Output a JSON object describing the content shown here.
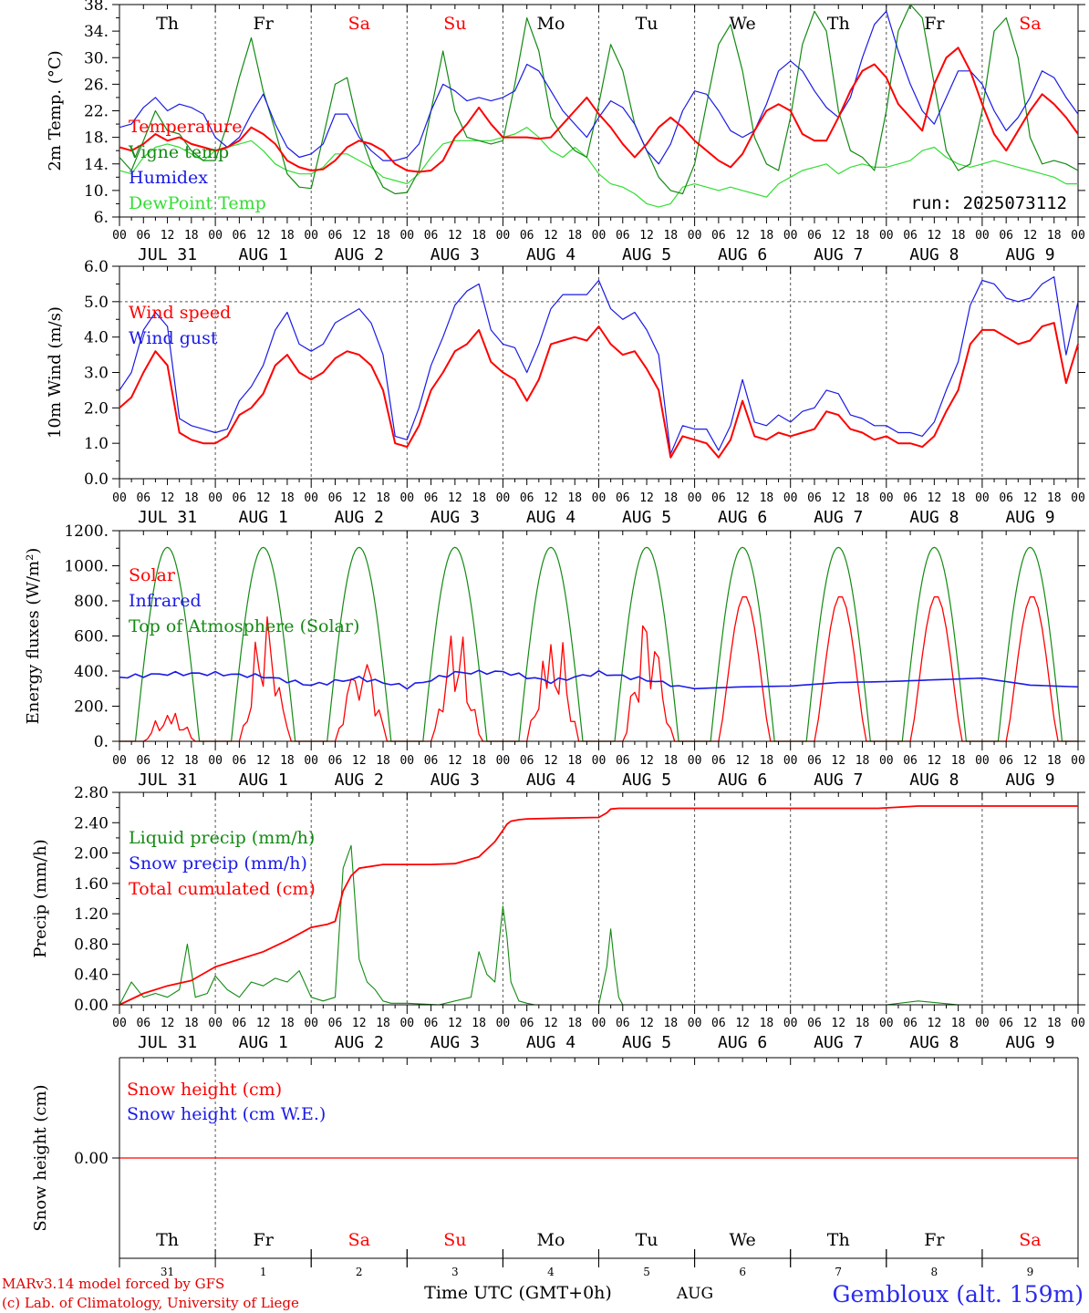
{
  "colors": {
    "red": "#ff0000",
    "green": "#138a13",
    "blue": "#1a1ae6",
    "lightgreen": "#33dd33",
    "axis": "#000000",
    "grid": "#555555",
    "credit": "#e00000",
    "station": "#2a2aee"
  },
  "days": {
    "names": [
      "Th",
      "Fr",
      "Sa",
      "Su",
      "Mo",
      "Tu",
      "We",
      "Th",
      "Fr",
      "Sa"
    ],
    "weekend_colored": [
      false,
      false,
      true,
      true,
      false,
      false,
      false,
      false,
      false,
      true
    ],
    "date_labels": [
      "JUL 31",
      "AUG  1",
      "AUG  2",
      "AUG  3",
      "AUG  4",
      "AUG  5",
      "AUG  6",
      "AUG  7",
      "AUG  8",
      "AUG  9"
    ],
    "hour_ticks": [
      "00",
      "06",
      "12",
      "18"
    ],
    "final_hour": "00",
    "day_numbers": [
      "31",
      "1",
      "2",
      "3",
      "4",
      "5",
      "6",
      "7",
      "8",
      "9"
    ],
    "month": "AUG"
  },
  "run_label": "run: 2025073112",
  "footer": {
    "credit_line1": "MARv3.14 model forced by GFS",
    "credit_line2": "(c) Lab. of Climatology, University of Liege",
    "axis_title": "Time UTC (GMT+0h)",
    "station": "Gembloux (alt. 159m)"
  },
  "chart_data": [
    {
      "type": "line",
      "ylabel": "2m Temp. (°C)",
      "ylim": [
        6,
        38
      ],
      "yticks": [
        "38.",
        "34.",
        "30.",
        "26.",
        "22.",
        "18.",
        "14.",
        "10.",
        "6."
      ],
      "ytick_values": [
        38,
        34,
        30,
        26,
        22,
        18,
        14,
        10,
        6
      ],
      "x_hours": [
        0,
        3,
        6,
        9,
        12,
        15,
        18,
        21,
        24,
        27,
        30,
        33,
        36,
        39,
        42,
        45,
        48,
        51,
        54,
        57,
        60,
        63,
        66,
        69,
        72,
        75,
        78,
        81,
        84,
        87,
        90,
        93,
        96,
        99,
        102,
        105,
        108,
        111,
        114,
        117,
        120,
        123,
        126,
        129,
        132,
        135,
        138,
        141,
        144,
        147,
        150,
        153,
        156,
        159,
        162,
        165,
        168,
        171,
        174,
        177,
        180,
        183,
        186,
        189,
        192,
        195,
        198,
        201,
        204,
        207,
        210,
        213,
        216,
        219,
        222,
        225,
        228,
        231,
        234,
        237,
        240
      ],
      "series": [
        {
          "name": "Temperature",
          "color": "red",
          "values": [
            16.5,
            16,
            17,
            18.5,
            17.5,
            18,
            17,
            16.5,
            16,
            16.5,
            17.5,
            19.5,
            18.5,
            17,
            14.5,
            13.5,
            13,
            13.2,
            14.5,
            16.5,
            17.5,
            17,
            16,
            14,
            13,
            12.8,
            13,
            14.5,
            18,
            20,
            22.5,
            20,
            18,
            18,
            18,
            17.8,
            18,
            20,
            22,
            24,
            21.5,
            19.5,
            17,
            15,
            17,
            19.5,
            21,
            19.5,
            17.5,
            16,
            14.5,
            13.5,
            15.5,
            19,
            22,
            23,
            22,
            18.5,
            17.5,
            17.5,
            21,
            25,
            28,
            29,
            27,
            23,
            21,
            19,
            26,
            30,
            31.5,
            28,
            23,
            18.5,
            16,
            19,
            22,
            24.5,
            23,
            21,
            18.5
          ]
        },
        {
          "name": "Vigne temp",
          "color": "green",
          "values": [
            15,
            13,
            17.5,
            22,
            19,
            18.5,
            16,
            14.5,
            14.5,
            20,
            27,
            33,
            25,
            19,
            12.5,
            10.5,
            10.3,
            18,
            26,
            27,
            19,
            14,
            10.5,
            9.5,
            9.7,
            13,
            22,
            31,
            22,
            18,
            17.5,
            17,
            17.5,
            26,
            36,
            31,
            21,
            18,
            16,
            15,
            23,
            32,
            28,
            20,
            16,
            12,
            10,
            9.5,
            14,
            23,
            32,
            35,
            28,
            18,
            14,
            13,
            21,
            32,
            37,
            34,
            22,
            16,
            15,
            13,
            22,
            34,
            38,
            36,
            26,
            16,
            13,
            14,
            22,
            34,
            36,
            30,
            18,
            14,
            14.5,
            14,
            13
          ]
        },
        {
          "name": "Humidex",
          "color": "blue",
          "values": [
            19.5,
            20,
            22.5,
            24,
            22,
            23,
            22.5,
            21.5,
            18,
            16.5,
            18,
            21.5,
            24.5,
            20,
            16.5,
            15,
            15.5,
            17,
            21.5,
            21.5,
            18,
            16,
            14.5,
            14.5,
            15,
            17,
            22,
            26,
            25,
            23.5,
            24,
            23.5,
            24,
            25,
            29,
            28,
            25,
            22,
            20,
            18,
            21,
            23.5,
            22.5,
            20,
            16,
            14,
            17,
            22,
            25,
            24.5,
            22,
            19,
            18,
            19,
            23,
            28,
            29.5,
            28,
            25,
            22.5,
            21,
            24,
            30,
            35,
            37,
            31,
            26,
            22,
            20,
            24,
            28,
            28,
            26,
            22,
            19,
            21,
            24,
            28,
            27,
            24,
            21.5
          ]
        },
        {
          "name": "DewPoint Temp",
          "color": "lightgreen",
          "values": [
            13,
            12.5,
            15,
            16.5,
            17,
            16.5,
            15.5,
            14.5,
            16,
            16.5,
            17,
            17.5,
            16,
            14,
            13,
            12.5,
            12.5,
            13.5,
            15.5,
            15.5,
            14.5,
            13.5,
            12,
            11.5,
            11,
            12.5,
            15,
            17,
            17.5,
            17.5,
            17.5,
            17.5,
            18,
            18.5,
            19.5,
            18,
            16,
            15,
            16.5,
            15,
            12.5,
            11,
            10.5,
            9.5,
            8,
            7.5,
            8,
            10.5,
            11,
            10.5,
            10,
            10.5,
            10,
            9.5,
            9,
            11,
            12,
            13,
            13.5,
            14,
            12.5,
            13.5,
            14,
            13.5,
            13.5,
            14,
            14.5,
            16,
            16.5,
            15,
            14,
            13.5,
            14,
            14.5,
            14,
            13.5,
            13,
            12.5,
            12,
            11,
            11
          ]
        }
      ]
    },
    {
      "type": "line",
      "ylabel": "10m Wind (m/s)",
      "ylim": [
        0,
        6
      ],
      "yticks": [
        "6.0",
        "5.0",
        "4.0",
        "3.0",
        "2.0",
        "1.0",
        "0.0"
      ],
      "ytick_values": [
        6,
        5,
        4,
        3,
        2,
        1,
        0
      ],
      "reference_line": 5,
      "x_hours": [
        0,
        3,
        6,
        9,
        12,
        15,
        18,
        21,
        24,
        27,
        30,
        33,
        36,
        39,
        42,
        45,
        48,
        51,
        54,
        57,
        60,
        63,
        66,
        69,
        72,
        75,
        78,
        81,
        84,
        87,
        90,
        93,
        96,
        99,
        102,
        105,
        108,
        111,
        114,
        117,
        120,
        123,
        126,
        129,
        132,
        135,
        138,
        141,
        144,
        147,
        150,
        153,
        156,
        159,
        162,
        165,
        168,
        171,
        174,
        177,
        180,
        183,
        186,
        189,
        192,
        195,
        198,
        201,
        204,
        207,
        210,
        213,
        216,
        219,
        222,
        225,
        228,
        231,
        234,
        237,
        240
      ],
      "series": [
        {
          "name": "Wind speed",
          "color": "red",
          "values": [
            2,
            2.3,
            3,
            3.6,
            3.2,
            1.3,
            1.1,
            1,
            1,
            1.2,
            1.8,
            2,
            2.4,
            3.2,
            3.5,
            3,
            2.8,
            3,
            3.4,
            3.6,
            3.5,
            3.2,
            2.5,
            1,
            0.9,
            1.5,
            2.5,
            3,
            3.6,
            3.8,
            4.2,
            3.3,
            3,
            2.8,
            2.2,
            2.8,
            3.8,
            3.9,
            4,
            3.9,
            4.3,
            3.8,
            3.5,
            3.6,
            3.1,
            2.5,
            0.6,
            1.2,
            1.1,
            1,
            0.6,
            1.1,
            2.2,
            1.2,
            1.1,
            1.3,
            1.2,
            1.3,
            1.4,
            1.9,
            1.8,
            1.4,
            1.3,
            1.1,
            1.2,
            1,
            1,
            0.9,
            1.2,
            1.9,
            2.5,
            3.8,
            4.2,
            4.2,
            4,
            3.8,
            3.9,
            4.3,
            4.4,
            2.7,
            3.8
          ]
        },
        {
          "name": "Wind gust",
          "color": "blue",
          "values": [
            2.5,
            3,
            4.2,
            4.7,
            4.3,
            1.7,
            1.5,
            1.4,
            1.3,
            1.4,
            2.2,
            2.6,
            3.2,
            4.2,
            4.7,
            3.8,
            3.6,
            3.8,
            4.4,
            4.6,
            4.8,
            4.4,
            3.5,
            1.2,
            1.1,
            2,
            3.2,
            4,
            4.9,
            5.3,
            5.5,
            4.2,
            3.8,
            3.7,
            3,
            3.8,
            4.8,
            5.2,
            5.2,
            5.2,
            5.6,
            4.8,
            4.5,
            4.7,
            4.2,
            3.5,
            0.7,
            1.5,
            1.4,
            1.4,
            0.8,
            1.5,
            2.8,
            1.6,
            1.5,
            1.8,
            1.6,
            1.9,
            2,
            2.5,
            2.4,
            1.8,
            1.7,
            1.5,
            1.5,
            1.3,
            1.3,
            1.2,
            1.6,
            2.5,
            3.3,
            4.9,
            5.6,
            5.5,
            5.1,
            5,
            5.1,
            5.5,
            5.7,
            3.5,
            5
          ]
        }
      ]
    },
    {
      "type": "line",
      "ylabel": "Energy fluxes (W/m²)",
      "ylim": [
        0,
        1200
      ],
      "yticks": [
        "1200.",
        "1000.",
        "800.",
        "600.",
        "400.",
        "200.",
        "0."
      ],
      "ytick_values": [
        1200,
        1000,
        800,
        600,
        400,
        200,
        0
      ],
      "series": [
        {
          "name": "Solar",
          "color": "red",
          "diurnal_peaks": [
            220,
            760,
            640,
            690,
            780,
            790,
            830,
            830,
            830,
            830
          ],
          "noisy_days": [
            true,
            true,
            true,
            true,
            true,
            true,
            false,
            false,
            false,
            false
          ]
        },
        {
          "name": "Infrared",
          "color": "blue",
          "x_hours": [
            0,
            12,
            24,
            36,
            48,
            60,
            72,
            84,
            96,
            108,
            120,
            132,
            144,
            156,
            168,
            180,
            192,
            204,
            216,
            228,
            240
          ],
          "values": [
            365,
            385,
            385,
            370,
            320,
            360,
            310,
            390,
            395,
            340,
            390,
            350,
            300,
            310,
            315,
            335,
            340,
            350,
            360,
            320,
            310
          ]
        },
        {
          "name": "Top of Atmosphere (Solar)",
          "color": "green",
          "peak": 1105,
          "sunrise_hour": 4,
          "sunset_hour": 20
        }
      ]
    },
    {
      "type": "line",
      "ylabel": "Precip (mm/h)",
      "ylim": [
        0,
        2.8
      ],
      "yticks": [
        "2.80",
        "2.40",
        "2.00",
        "1.60",
        "1.20",
        "0.80",
        "0.40",
        "0.00"
      ],
      "ytick_values": [
        2.8,
        2.4,
        2,
        1.6,
        1.2,
        0.8,
        0.4,
        0
      ],
      "series": [
        {
          "name": "Liquid precip (mm/h)",
          "color": "green",
          "x_hours": [
            0,
            3,
            6,
            9,
            12,
            15,
            17,
            19,
            22,
            24,
            27,
            30,
            33,
            36,
            39,
            42,
            45,
            48,
            51,
            54,
            56,
            58,
            60,
            62,
            64,
            66,
            68,
            72,
            80,
            84,
            88,
            90,
            92,
            94,
            96,
            97,
            98,
            100,
            102,
            104,
            110,
            120,
            122,
            123,
            124,
            125,
            126,
            128,
            130,
            140,
            192,
            200,
            210,
            240
          ],
          "values": [
            0,
            0.3,
            0.1,
            0.15,
            0.1,
            0.2,
            0.8,
            0.1,
            0.15,
            0.38,
            0.2,
            0.1,
            0.3,
            0.25,
            0.35,
            0.3,
            0.45,
            0.1,
            0.05,
            0.1,
            1.8,
            2.1,
            0.6,
            0.3,
            0.2,
            0.05,
            0.02,
            0.02,
            0,
            0.05,
            0.1,
            0.7,
            0.4,
            0.3,
            1.3,
            0.9,
            0.3,
            0.05,
            0.02,
            0,
            0,
            0,
            0.5,
            1,
            0.5,
            0.1,
            0,
            0,
            0,
            0,
            0,
            0.05,
            0,
            0
          ]
        },
        {
          "name": "Snow precip (mm/h)",
          "color": "blue",
          "values": [
            0
          ]
        },
        {
          "name": "Total cumulated (cm)",
          "color": "red",
          "x_hours": [
            0,
            6,
            12,
            18,
            24,
            30,
            36,
            42,
            48,
            52,
            54,
            56,
            58,
            60,
            66,
            72,
            78,
            84,
            90,
            92,
            94,
            96,
            97,
            98,
            100,
            102,
            110,
            120,
            122,
            123,
            125,
            130,
            144,
            168,
            190,
            200,
            240
          ],
          "values": [
            0,
            0.15,
            0.25,
            0.32,
            0.5,
            0.6,
            0.7,
            0.85,
            1.02,
            1.06,
            1.1,
            1.5,
            1.7,
            1.8,
            1.85,
            1.85,
            1.85,
            1.86,
            1.95,
            2.05,
            2.15,
            2.3,
            2.38,
            2.42,
            2.44,
            2.45,
            2.46,
            2.47,
            2.53,
            2.58,
            2.59,
            2.59,
            2.59,
            2.59,
            2.59,
            2.62,
            2.62
          ]
        }
      ]
    },
    {
      "type": "line",
      "ylabel": "Snow height (cm)",
      "yticks": [
        "0.00"
      ],
      "ytick_values": [
        0
      ],
      "series": [
        {
          "name": "Snow height (cm)",
          "color": "red",
          "values": [
            0
          ]
        },
        {
          "name": "Snow height (cm W.E.)",
          "color": "blue",
          "values": [
            0
          ]
        }
      ]
    }
  ]
}
